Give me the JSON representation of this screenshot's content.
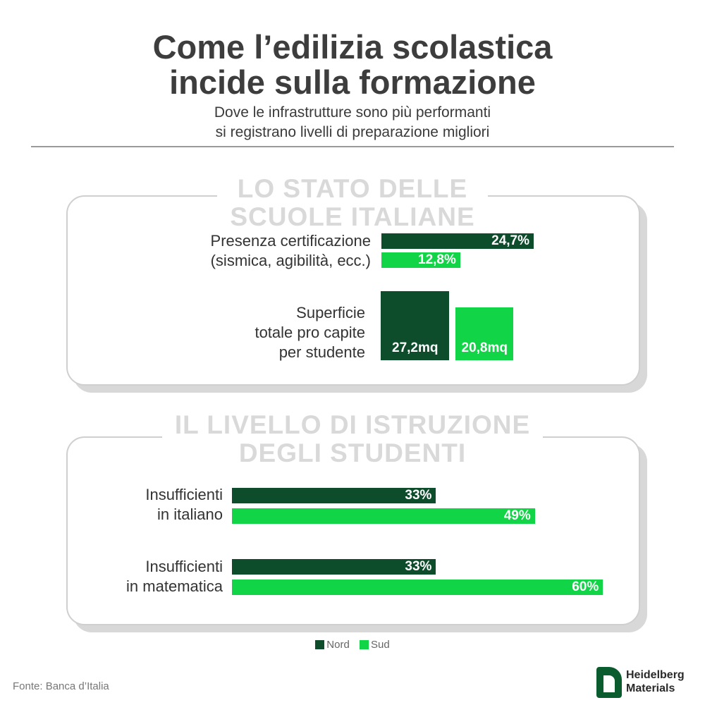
{
  "title": [
    "Come l’edilizia scolastica",
    "incide sulla formazione"
  ],
  "subtitle": [
    "Dove le infrastrutture sono più performanti",
    "si registrano livelli di preparazione migliori"
  ],
  "colors": {
    "nord": "#0e4d2c",
    "sud": "#12d447",
    "section_heading": "#d9d9d9",
    "panel_border": "#cfcfcf"
  },
  "chart_data": [
    {
      "type": "bar",
      "orientation": "horizontal",
      "section_title": [
        "LO STATO DELLE",
        "SCUOLE ITALIANE"
      ],
      "category_label": [
        "Presenza certificazione",
        "(sismica, agibilità, ecc.)"
      ],
      "series": [
        {
          "name": "Nord",
          "value": 24.7,
          "label": "24,7%"
        },
        {
          "name": "Sud",
          "value": 12.8,
          "label": "12,8%"
        }
      ]
    },
    {
      "type": "bar",
      "orientation": "vertical",
      "category_label": [
        "Superficie",
        "totale pro capite",
        "per studente"
      ],
      "series": [
        {
          "name": "Nord",
          "value": 27.2,
          "label": "27,2mq"
        },
        {
          "name": "Sud",
          "value": 20.8,
          "label": "20,8mq"
        }
      ]
    },
    {
      "type": "bar",
      "orientation": "horizontal",
      "section_title": [
        "IL LIVELLO DI ISTRUZIONE",
        "DEGLI STUDENTI"
      ],
      "categories": [
        {
          "label": [
            "Insufficienti",
            "in italiano"
          ],
          "nord": 33,
          "nord_label": "33%",
          "sud": 49,
          "sud_label": "49%"
        },
        {
          "label": [
            "Insufficienti",
            "in matematica"
          ],
          "nord": 33,
          "nord_label": "33%",
          "sud": 60,
          "sud_label": "60%"
        }
      ]
    }
  ],
  "legend": [
    {
      "name": "Nord",
      "color": "#0e4d2c"
    },
    {
      "name": "Sud",
      "color": "#12d447"
    }
  ],
  "source": "Fonte: Banca d’Italia",
  "logo": [
    "Heidelberg",
    "Materials"
  ]
}
